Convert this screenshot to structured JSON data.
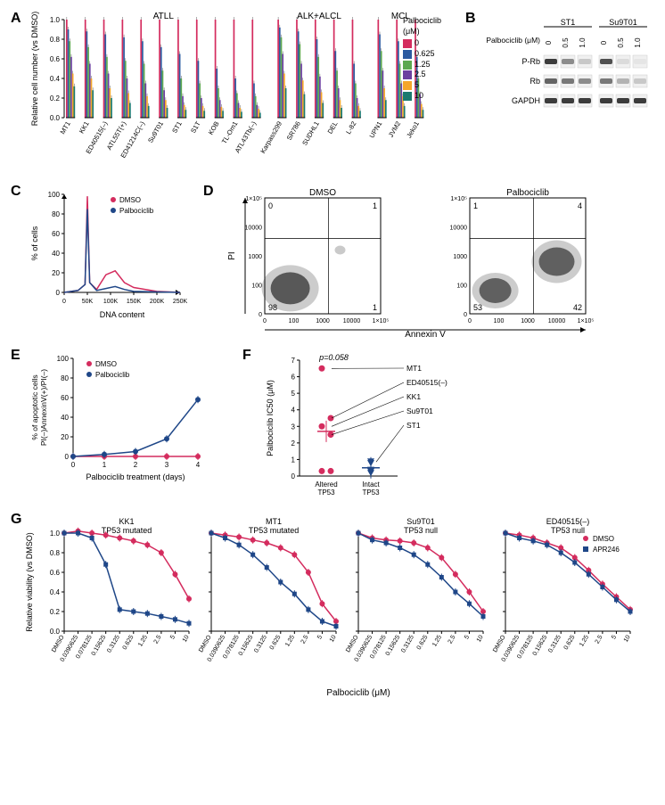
{
  "colors": {
    "red": "#d42c5e",
    "blue": "#2c5aa0",
    "navy": "#1f4788",
    "green": "#5ca84f",
    "purple": "#6b3fa0",
    "orange": "#f4a62a",
    "teal": "#1b7a6f",
    "dmso_red": "#d42c5e",
    "pal_blue": "#2c5aa0",
    "apr_blue": "#2c5aa0",
    "grey": "#999999",
    "axis": "#000000",
    "bg": "#ffffff"
  },
  "panelA": {
    "title_groups": [
      "ATLL",
      "ALK+ALCL",
      "MCL"
    ],
    "ylabel": "Relative cell number (vs DMSO)",
    "ymin": 0,
    "ymax": 1.0,
    "ytick": 0.2,
    "legend_title": "Palbociclib\n(μM)",
    "legend": [
      "0",
      "0.625",
      "1.25",
      "2.5",
      "5",
      "10"
    ],
    "legend_colors": [
      "red",
      "blue",
      "green",
      "purple",
      "orange",
      "teal"
    ],
    "cell_lines_atll": [
      "MT1",
      "KK1",
      "ED40515(–)",
      "ATL55T(+)",
      "ED41214C(–)",
      "Su9T01",
      "ST1",
      "S1T",
      "KOB",
      "TL-Om1",
      "ATL43Tb(–)"
    ],
    "cell_lines_alk": [
      "Karpass299",
      "SR786",
      "SUDHL1",
      "DEL",
      "L-82"
    ],
    "cell_lines_mcl": [
      "UPN1",
      "JVM2",
      "Jeko1"
    ],
    "values_atll": [
      [
        1.0,
        0.9,
        0.78,
        0.62,
        0.45,
        0.32
      ],
      [
        1.0,
        0.88,
        0.72,
        0.55,
        0.4,
        0.28
      ],
      [
        1.0,
        0.85,
        0.62,
        0.45,
        0.3,
        0.2
      ],
      [
        1.0,
        0.82,
        0.58,
        0.4,
        0.25,
        0.15
      ],
      [
        1.0,
        0.78,
        0.55,
        0.35,
        0.22,
        0.12
      ],
      [
        1.0,
        0.72,
        0.48,
        0.28,
        0.18,
        0.1
      ],
      [
        1.0,
        0.65,
        0.4,
        0.22,
        0.13,
        0.08
      ],
      [
        1.0,
        0.58,
        0.35,
        0.2,
        0.12,
        0.07
      ],
      [
        1.0,
        0.5,
        0.3,
        0.18,
        0.11,
        0.07
      ],
      [
        1.0,
        0.4,
        0.25,
        0.15,
        0.1,
        0.06
      ],
      [
        1.0,
        0.35,
        0.22,
        0.13,
        0.09,
        0.05
      ]
    ],
    "values_alk": [
      [
        1.0,
        0.92,
        0.82,
        0.65,
        0.45,
        0.3
      ],
      [
        1.0,
        0.88,
        0.75,
        0.55,
        0.38,
        0.24
      ],
      [
        1.0,
        0.8,
        0.62,
        0.42,
        0.26,
        0.15
      ],
      [
        1.0,
        0.68,
        0.48,
        0.3,
        0.18,
        0.1
      ],
      [
        1.0,
        0.55,
        0.35,
        0.2,
        0.12,
        0.07
      ]
    ],
    "values_mcl": [
      [
        1.0,
        0.85,
        0.68,
        0.48,
        0.3,
        0.18
      ],
      [
        1.0,
        0.78,
        0.55,
        0.35,
        0.22,
        0.12
      ],
      [
        1.0,
        0.62,
        0.4,
        0.24,
        0.14,
        0.08
      ]
    ]
  },
  "panelB": {
    "samples": [
      "ST1",
      "Su9T01"
    ],
    "drug_label": "Palbociclib (μM)",
    "doses": [
      "0",
      "0.5",
      "1.0",
      "0",
      "0.5",
      "1.0"
    ],
    "rows": [
      "P-Rb",
      "Rb",
      "GAPDH"
    ]
  },
  "panelC": {
    "xlabel": "DNA content",
    "ylabel": "% of cells",
    "xticks": [
      0,
      "50K",
      "100K",
      "150K",
      "200K",
      "250K"
    ],
    "yticks": [
      0,
      20,
      40,
      60,
      80,
      100
    ],
    "series": [
      "DMSO",
      "Palbociclib"
    ]
  },
  "panelD": {
    "titles": [
      "DMSO",
      "Palbociclib"
    ],
    "xlabel": "Annexin V",
    "ylabel": "PI",
    "ticks": [
      "0",
      "100",
      "1000",
      "10000",
      "1×10⁵"
    ],
    "quad_dmso": [
      "0",
      "1",
      "98",
      "1"
    ],
    "quad_pal": [
      "1",
      "4",
      "53",
      "42"
    ]
  },
  "panelE": {
    "xlabel": "Palbociclib treatment (days)",
    "ylabel": "% of apoptotic cells\nPI(–)AnnexinV(+)/PI(–)",
    "xticks": [
      0,
      1,
      2,
      3,
      4
    ],
    "yticks": [
      0,
      20,
      40,
      60,
      80,
      100
    ],
    "series": [
      "DMSO",
      "Palbociclib"
    ],
    "dmso_vals": [
      0,
      0,
      0,
      0,
      0
    ],
    "pal_vals": [
      0,
      2,
      5,
      18,
      58
    ]
  },
  "panelF": {
    "ylabel": "Palbociclib IC50 (μM)",
    "yticks": [
      0,
      1,
      2,
      3,
      4,
      5,
      6,
      7
    ],
    "groups": [
      "Altered\nTP53",
      "Intact\nTP53"
    ],
    "p_value": "p=0.058",
    "altered_points": [
      6.5,
      3.5,
      3.0,
      2.5,
      0.3,
      0.3
    ],
    "intact_points": [
      0.9,
      0.8,
      0.4,
      0.3,
      0.2
    ],
    "labels": [
      "MT1",
      "ED40515(–)",
      "KK1",
      "Su9T01",
      "ST1"
    ]
  },
  "panelG": {
    "xlabel": "Palbociclib (μM)",
    "ylabel": "Relative viability (vs DMSO)",
    "xticks": [
      "DMSO",
      "0.0390625",
      "0.078125",
      "0.15625",
      "0.3125",
      "0.625",
      "1.25",
      "2.5",
      "5",
      "10"
    ],
    "yticks": [
      0,
      0.2,
      0.4,
      0.6,
      0.8,
      1.0
    ],
    "series": [
      "DMSO",
      "APR246"
    ],
    "plots": [
      {
        "title": "KK1\nTP53 mutated",
        "dmso": [
          1.0,
          1.02,
          1.0,
          0.98,
          0.95,
          0.92,
          0.88,
          0.8,
          0.58,
          0.33
        ],
        "apr": [
          1.0,
          1.0,
          0.95,
          0.68,
          0.22,
          0.2,
          0.18,
          0.15,
          0.12,
          0.08
        ]
      },
      {
        "title": "MT1\nTP53 mutated",
        "dmso": [
          1.0,
          0.98,
          0.96,
          0.93,
          0.9,
          0.85,
          0.78,
          0.6,
          0.28,
          0.1
        ],
        "apr": [
          1.0,
          0.95,
          0.88,
          0.78,
          0.65,
          0.5,
          0.38,
          0.22,
          0.1,
          0.05
        ]
      },
      {
        "title": "Su9T01\nTP53 null",
        "dmso": [
          1.0,
          0.95,
          0.93,
          0.92,
          0.9,
          0.85,
          0.75,
          0.58,
          0.4,
          0.2
        ],
        "apr": [
          1.0,
          0.93,
          0.9,
          0.85,
          0.78,
          0.68,
          0.55,
          0.4,
          0.28,
          0.15
        ]
      },
      {
        "title": "ED40515(–)\nTP53 null",
        "dmso": [
          1.0,
          0.98,
          0.95,
          0.9,
          0.85,
          0.75,
          0.62,
          0.48,
          0.35,
          0.22
        ],
        "apr": [
          1.0,
          0.95,
          0.92,
          0.88,
          0.8,
          0.7,
          0.58,
          0.45,
          0.32,
          0.2
        ]
      }
    ]
  }
}
